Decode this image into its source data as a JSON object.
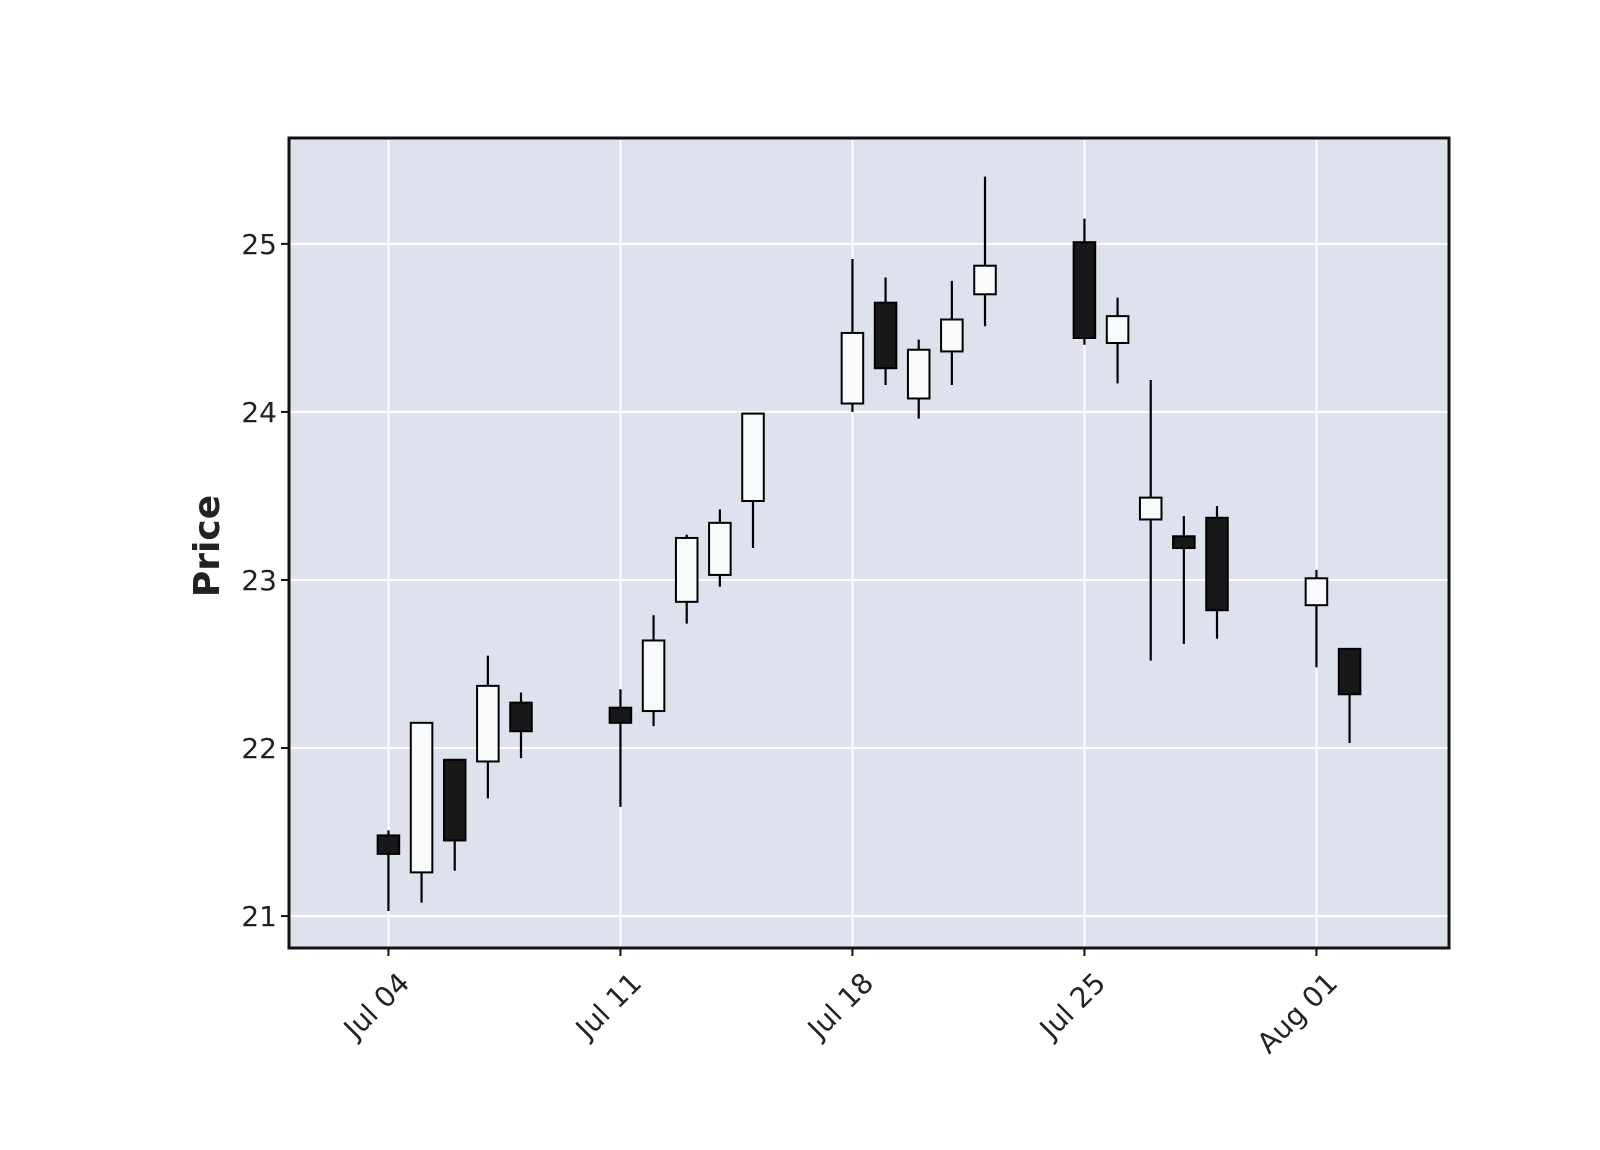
{
  "chart_data": {
    "type": "candlestick",
    "ylabel": "Price",
    "xlabel": "",
    "ylim": [
      20.81,
      25.63
    ],
    "yticks": [
      21,
      22,
      23,
      24,
      25
    ],
    "xticks": [
      {
        "date": "2022-07-04",
        "label": "Jul 04"
      },
      {
        "date": "2022-07-11",
        "label": "Jul 11"
      },
      {
        "date": "2022-07-18",
        "label": "Jul 18"
      },
      {
        "date": "2022-07-25",
        "label": "Jul 25"
      },
      {
        "date": "2022-08-01",
        "label": "Aug 01"
      }
    ],
    "xlim": [
      "2022-07-01",
      "2022-08-05"
    ],
    "grid": true,
    "colors": {
      "up": "#fafbfc",
      "down": "#18181a",
      "edge": "#000000",
      "plot_background": "#dee2ed",
      "grid": "#ffffff"
    },
    "candles": [
      {
        "date": "2022-07-04",
        "open": 21.48,
        "high": 21.51,
        "low": 21.03,
        "close": 21.37
      },
      {
        "date": "2022-07-05",
        "open": 21.26,
        "high": 22.15,
        "low": 21.08,
        "close": 22.15
      },
      {
        "date": "2022-07-06",
        "open": 21.93,
        "high": 21.93,
        "low": 21.27,
        "close": 21.45
      },
      {
        "date": "2022-07-07",
        "open": 21.92,
        "high": 22.55,
        "low": 21.7,
        "close": 22.37
      },
      {
        "date": "2022-07-08",
        "open": 22.27,
        "high": 22.33,
        "low": 21.94,
        "close": 22.1
      },
      {
        "date": "2022-07-11",
        "open": 22.24,
        "high": 22.35,
        "low": 21.65,
        "close": 22.15
      },
      {
        "date": "2022-07-12",
        "open": 22.22,
        "high": 22.79,
        "low": 22.13,
        "close": 22.64
      },
      {
        "date": "2022-07-13",
        "open": 22.87,
        "high": 23.27,
        "low": 22.74,
        "close": 23.25
      },
      {
        "date": "2022-07-14",
        "open": 23.03,
        "high": 23.42,
        "low": 22.96,
        "close": 23.34
      },
      {
        "date": "2022-07-15",
        "open": 23.47,
        "high": 23.99,
        "low": 23.19,
        "close": 23.99
      },
      {
        "date": "2022-07-18",
        "open": 24.05,
        "high": 24.91,
        "low": 24.0,
        "close": 24.47
      },
      {
        "date": "2022-07-19",
        "open": 24.65,
        "high": 24.8,
        "low": 24.16,
        "close": 24.26
      },
      {
        "date": "2022-07-20",
        "open": 24.08,
        "high": 24.43,
        "low": 23.96,
        "close": 24.37
      },
      {
        "date": "2022-07-21",
        "open": 24.36,
        "high": 24.78,
        "low": 24.16,
        "close": 24.55
      },
      {
        "date": "2022-07-22",
        "open": 24.7,
        "high": 25.4,
        "low": 24.51,
        "close": 24.87
      },
      {
        "date": "2022-07-25",
        "open": 25.01,
        "high": 25.15,
        "low": 24.4,
        "close": 24.44
      },
      {
        "date": "2022-07-26",
        "open": 24.41,
        "high": 24.68,
        "low": 24.17,
        "close": 24.57
      },
      {
        "date": "2022-07-27",
        "open": 23.36,
        "high": 24.19,
        "low": 22.52,
        "close": 23.49
      },
      {
        "date": "2022-07-28",
        "open": 23.26,
        "high": 23.38,
        "low": 22.62,
        "close": 23.19
      },
      {
        "date": "2022-07-29",
        "open": 23.37,
        "high": 23.44,
        "low": 22.65,
        "close": 22.82
      },
      {
        "date": "2022-08-01",
        "open": 22.85,
        "high": 23.06,
        "low": 22.48,
        "close": 23.01
      },
      {
        "date": "2022-08-02",
        "open": 22.59,
        "high": 22.59,
        "low": 22.03,
        "close": 22.32
      }
    ]
  }
}
